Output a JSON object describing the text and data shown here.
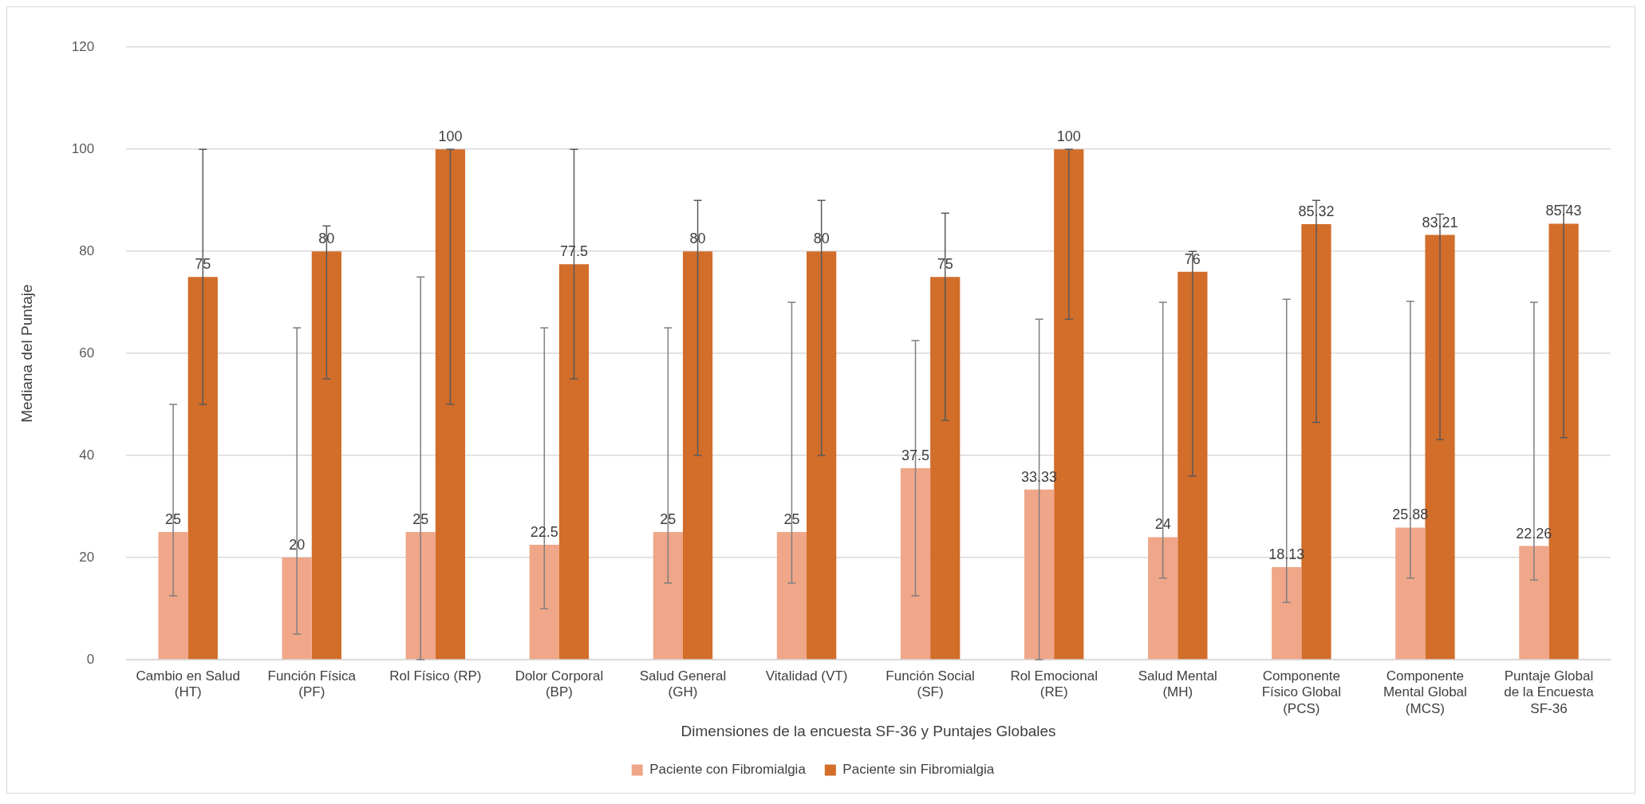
{
  "chart_data": {
    "type": "bar",
    "xlabel": "Dimensiones de la encuesta SF-36 y Puntajes Globales",
    "ylabel": "Mediana del Puntaje",
    "categories": [
      "Cambio en Salud (HT)",
      "Función Física (PF)",
      "Rol Físico (RP)",
      "Dolor Corporal (BP)",
      "Salud General (GH)",
      "Vitalidad (VT)",
      "Función Social (SF)",
      "Rol Emocional (RE)",
      "Salud Mental (MH)",
      "Componente Físico Global (PCS)",
      "Componente Mental Global (MCS)",
      "Puntaje Global de la Encuesta SF-36"
    ],
    "series": [
      {
        "name": "Paciente con Fibromialgia",
        "color": "#f0a688",
        "values": [
          25,
          20,
          25,
          22.5,
          25,
          25,
          37.5,
          33.33,
          24,
          18.13,
          25.88,
          22.26
        ],
        "errors": [
          [
            12.5,
            50
          ],
          [
            5,
            65
          ],
          [
            0,
            75
          ],
          [
            10,
            65
          ],
          [
            15,
            65
          ],
          [
            15,
            70
          ],
          [
            12.5,
            62.5
          ],
          [
            0,
            66.7
          ],
          [
            16,
            70
          ],
          [
            11.2,
            70.6
          ],
          [
            16,
            70.2
          ],
          [
            15.6,
            70
          ]
        ]
      },
      {
        "name": "Paciente sin Fibromialgia",
        "color": "#d26d2a",
        "values": [
          75,
          80,
          100,
          77.5,
          80,
          80,
          75,
          100,
          76,
          85.32,
          83.21,
          85.43
        ],
        "errors": [
          [
            50,
            100
          ],
          [
            55,
            85
          ],
          [
            50,
            100
          ],
          [
            55,
            100
          ],
          [
            40,
            90
          ],
          [
            40,
            90
          ],
          [
            46.9,
            87.5
          ],
          [
            66.7,
            100
          ],
          [
            36,
            80
          ],
          [
            46.5,
            90
          ],
          [
            43.1,
            87.3
          ],
          [
            43.5,
            89
          ]
        ]
      }
    ],
    "ylim": [
      0,
      120
    ],
    "yticks": [
      0,
      20,
      40,
      60,
      80,
      100,
      120
    ],
    "grid": "y",
    "legend": "bottom",
    "data_labels": true
  }
}
